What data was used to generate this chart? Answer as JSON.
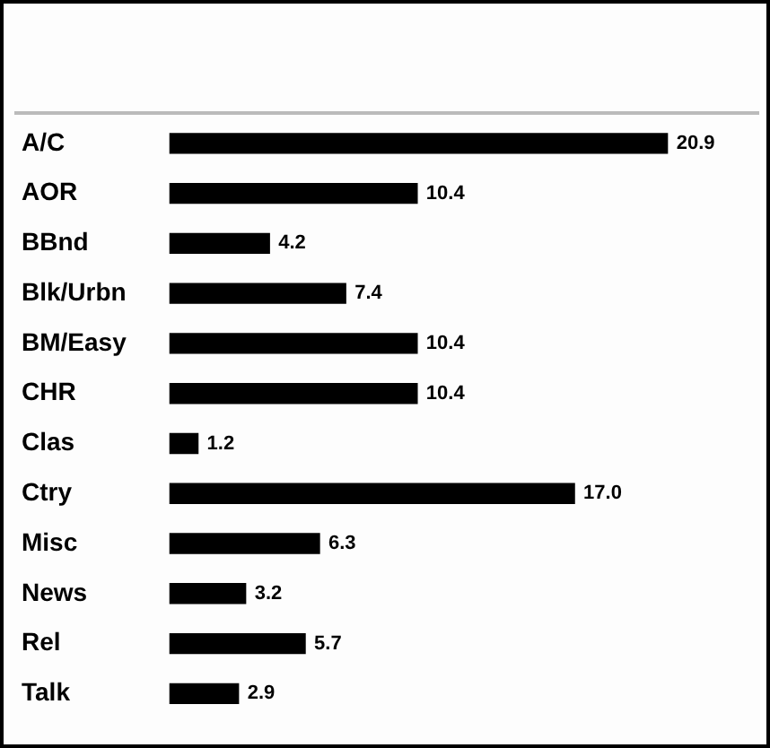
{
  "chart_data": {
    "type": "bar",
    "orientation": "horizontal",
    "categories": [
      "A/C",
      "AOR",
      "BBnd",
      "Blk/Urbn",
      "BM/Easy",
      "CHR",
      "Clas",
      "Ctry",
      "Misc",
      "News",
      "Rel",
      "Talk"
    ],
    "values": [
      20.9,
      10.4,
      4.2,
      7.4,
      10.4,
      10.4,
      1.2,
      17.0,
      6.3,
      3.2,
      5.7,
      2.9
    ],
    "value_labels": [
      "20.9",
      "10.4",
      "4.2",
      "7.4",
      "10.4",
      "10.4",
      "1.2",
      "17.0",
      "6.3",
      "3.2",
      "5.7",
      "2.9"
    ],
    "color": "#000000"
  }
}
